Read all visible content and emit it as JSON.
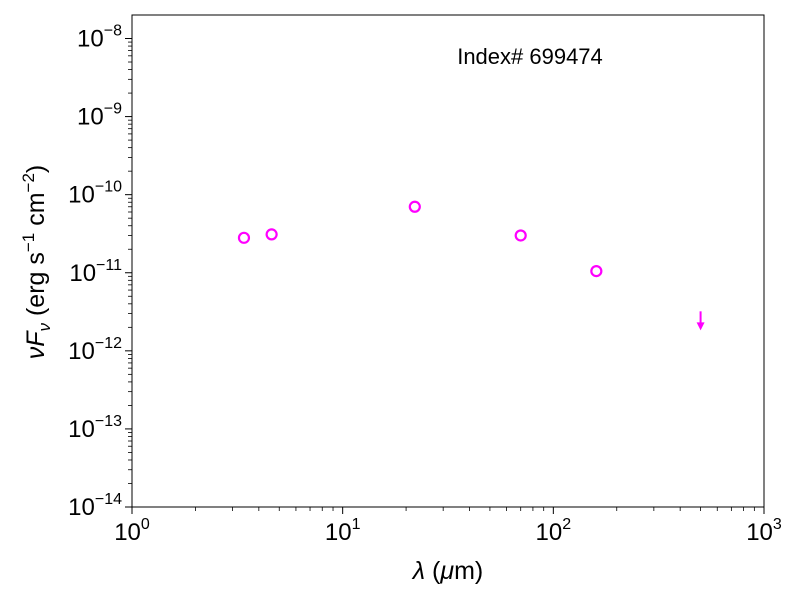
{
  "chart_data": {
    "type": "scatter",
    "x_scale": "log",
    "y_scale": "log",
    "xlim": [
      1,
      1000
    ],
    "ylim": [
      1e-14,
      2e-08
    ],
    "grid": false,
    "x_ticks": [
      {
        "base": "10",
        "exp": "0"
      },
      {
        "base": "10",
        "exp": "1"
      },
      {
        "base": "10",
        "exp": "2"
      },
      {
        "base": "10",
        "exp": "3"
      }
    ],
    "y_ticks": [
      {
        "base": "10",
        "exp": "−14"
      },
      {
        "base": "10",
        "exp": "−13"
      },
      {
        "base": "10",
        "exp": "−12"
      },
      {
        "base": "10",
        "exp": "−11"
      },
      {
        "base": "10",
        "exp": "−10"
      },
      {
        "base": "10",
        "exp": "−9"
      },
      {
        "base": "10",
        "exp": "−8"
      }
    ],
    "xlabel": {
      "sym": "λ",
      "rest": " (",
      "mu": "μ",
      "tail": "m)"
    },
    "ylabel": {
      "nu": "ν",
      "F": "F",
      "sub": "ν",
      "p1": " (erg s",
      "e1": "−1",
      "p2": " cm",
      "e2": "−2",
      "p3": ")"
    },
    "annotation": "Index# 699474",
    "marker_color": "#ff00ff",
    "points": [
      {
        "x": 3.4,
        "y": 2.8e-11
      },
      {
        "x": 4.6,
        "y": 3.1e-11
      },
      {
        "x": 22,
        "y": 7e-11
      },
      {
        "x": 70,
        "y": 3e-11
      },
      {
        "x": 160,
        "y": 1.05e-11
      }
    ],
    "upper_limits": [
      {
        "x": 500,
        "y": 2e-12
      }
    ]
  }
}
